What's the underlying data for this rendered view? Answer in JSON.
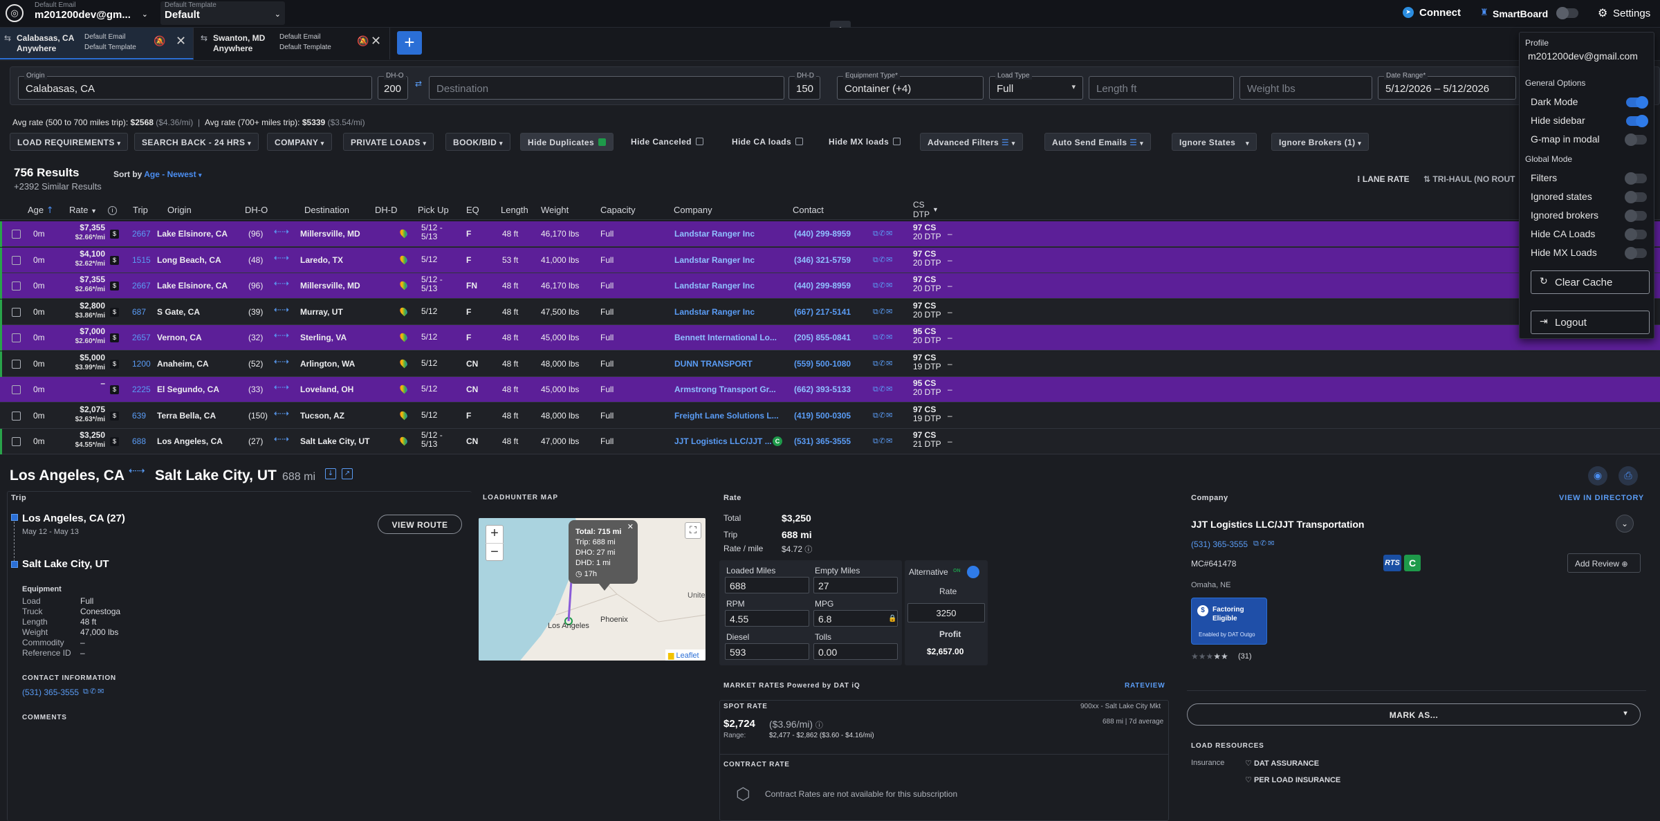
{
  "colors": {
    "accent": "#2b6fd6",
    "link": "#5a9cf5",
    "highlight_row": "#5c1f98",
    "bg": "#1b1d22"
  },
  "topbar": {
    "email_label": "Default Email",
    "email_value": "m201200dev@gm...",
    "template_label": "Default Template",
    "template_value": "Default",
    "connect": "Connect",
    "smartboard": "SmartBoard",
    "settings": "Settings"
  },
  "tabs": [
    {
      "origin": "Calabasas, CA",
      "dest": "Anywhere",
      "email": "Default Email",
      "template": "Default Template"
    },
    {
      "origin": "Swanton, MD",
      "dest": "Anywhere",
      "email": "Default Email",
      "template": "Default Template"
    }
  ],
  "search": {
    "origin_label": "Origin",
    "origin_value": "Calabasas, CA",
    "dho_label": "DH-O",
    "dho_value": "200",
    "dest_placeholder": "Destination",
    "dhd_label": "DH-D",
    "dhd_value": "150",
    "equip_label": "Equipment Type*",
    "equip_value": "Container (+4)",
    "loadtype_label": "Load Type",
    "loadtype_value": "Full",
    "length_placeholder": "Length ft",
    "weight_placeholder": "Weight lbs",
    "date_label": "Date Range*",
    "date_value": "5/12/2026 – 5/12/2026"
  },
  "avg": {
    "short_label": "Avg rate (500 to 700 miles trip):",
    "short_value": "$2568",
    "short_pm": "($4.36/mi)",
    "long_label": "Avg rate (700+ miles trip):",
    "long_value": "$5339",
    "long_pm": "($3.54/mi)"
  },
  "filters": {
    "load_req": "LOAD REQUIREMENTS",
    "search_back": "SEARCH BACK - 24 HRS",
    "company": "COMPANY",
    "private": "PRIVATE LOADS",
    "bookbid": "BOOK/BID",
    "hide_dup": "Hide Duplicates",
    "hide_canceled": "Hide Canceled",
    "hide_ca": "Hide CA loads",
    "hide_mx": "Hide MX loads",
    "advanced": "Advanced Filters",
    "auto_send": "Auto Send Emails",
    "ignore_states": "Ignore States",
    "ignore_brokers": "Ignore Brokers  (1)"
  },
  "results": {
    "count": "756 Results",
    "similar": "+2392 Similar Results",
    "sort_label": "Sort by",
    "sort_value": "Age - Newest",
    "lane_rate": "LANE RATE",
    "trihaul": "TRI-HAUL (NO ROUT"
  },
  "columns": {
    "age": "Age",
    "rate": "Rate",
    "trip": "Trip",
    "origin": "Origin",
    "dho": "DH-O",
    "dest": "Destination",
    "dhd": "DH-D",
    "pickup": "Pick Up",
    "eq": "EQ",
    "length": "Length",
    "weight": "Weight",
    "capacity": "Capacity",
    "company": "Company",
    "contact": "Contact",
    "cs": "CS",
    "dtp": "DTP"
  },
  "rows": [
    {
      "age": "0m",
      "rate": "$7,355",
      "pm": "$2.66*/mi",
      "trip": "2667",
      "origin": "Lake Elsinore, CA",
      "dho": "(96)",
      "dest": "Millersville, MD",
      "pick1": "5/12 -",
      "pick2": "5/13",
      "eq": "F",
      "len": "48 ft",
      "wt": "46,170 lbs",
      "cap": "Full",
      "company": "Landstar Ranger Inc",
      "contact": "(440) 299-8959",
      "cs": "97 CS",
      "dtp": "20 DTP",
      "last": "–"
    },
    {
      "age": "0m",
      "rate": "$4,100",
      "pm": "$2.62*/mi",
      "trip": "1515",
      "origin": "Long Beach, CA",
      "dho": "(48)",
      "dest": "Laredo, TX",
      "pick1": "5/12",
      "pick2": "",
      "eq": "F",
      "len": "53 ft",
      "wt": "41,000 lbs",
      "cap": "Full",
      "company": "Landstar Ranger Inc",
      "contact": "(346) 321-5759",
      "cs": "97 CS",
      "dtp": "20 DTP",
      "last": "–"
    },
    {
      "age": "0m",
      "rate": "$7,355",
      "pm": "$2.66*/mi",
      "trip": "2667",
      "origin": "Lake Elsinore, CA",
      "dho": "(96)",
      "dest": "Millersville, MD",
      "pick1": "5/12 -",
      "pick2": "5/13",
      "eq": "FN",
      "len": "48 ft",
      "wt": "46,170 lbs",
      "cap": "Full",
      "company": "Landstar Ranger Inc",
      "contact": "(440) 299-8959",
      "cs": "97 CS",
      "dtp": "20 DTP",
      "last": "–"
    },
    {
      "age": "0m",
      "rate": "$2,800",
      "pm": "$3.86*/mi",
      "trip": "687",
      "origin": "S Gate, CA",
      "dho": "(39)",
      "dest": "Murray, UT",
      "pick1": "5/12",
      "pick2": "",
      "eq": "F",
      "len": "48 ft",
      "wt": "47,500 lbs",
      "cap": "Full",
      "company": "Landstar Ranger Inc",
      "contact": "(667) 217-5141",
      "cs": "97 CS",
      "dtp": "20 DTP",
      "last": "–"
    },
    {
      "age": "0m",
      "rate": "$7,000",
      "pm": "$2.60*/mi",
      "trip": "2657",
      "origin": "Vernon, CA",
      "dho": "(32)",
      "dest": "Sterling, VA",
      "pick1": "5/12",
      "pick2": "",
      "eq": "F",
      "len": "48 ft",
      "wt": "45,000 lbs",
      "cap": "Full",
      "company": "Bennett International Lo...",
      "contact": "(205) 855-0841",
      "cs": "95 CS",
      "dtp": "20 DTP",
      "last": "–"
    },
    {
      "age": "0m",
      "rate": "$5,000",
      "pm": "$3.99*/mi",
      "trip": "1200",
      "origin": "Anaheim, CA",
      "dho": "(52)",
      "dest": "Arlington, WA",
      "pick1": "5/12",
      "pick2": "",
      "eq": "CN",
      "len": "48 ft",
      "wt": "48,000 lbs",
      "cap": "Full",
      "company": "DUNN TRANSPORT",
      "contact": "(559) 500-1080",
      "cs": "97 CS",
      "dtp": "19 DTP",
      "last": "–"
    },
    {
      "age": "0m",
      "rate": "–",
      "pm": "",
      "trip": "2225",
      "origin": "El Segundo, CA",
      "dho": "(33)",
      "dest": "Loveland, OH",
      "pick1": "5/12",
      "pick2": "",
      "eq": "CN",
      "len": "48 ft",
      "wt": "45,000 lbs",
      "cap": "Full",
      "company": "Armstrong Transport Gr...",
      "contact": "(662) 393-5133",
      "cs": "95 CS",
      "dtp": "20 DTP",
      "last": "–"
    },
    {
      "age": "0m",
      "rate": "$2,075",
      "pm": "$2.63*/mi",
      "trip": "639",
      "origin": "Terra Bella, CA",
      "dho": "(150)",
      "dest": "Tucson, AZ",
      "pick1": "5/12",
      "pick2": "",
      "eq": "F",
      "len": "48 ft",
      "wt": "48,000 lbs",
      "cap": "Full",
      "company": "Freight Lane Solutions L...",
      "contact": "(419) 500-0305",
      "cs": "97 CS",
      "dtp": "19 DTP",
      "last": "–"
    },
    {
      "age": "0m",
      "rate": "$3,250",
      "pm": "$4.55*/mi",
      "trip": "688",
      "origin": "Los Angeles, CA",
      "dho": "(27)",
      "dest": "Salt Lake City, UT",
      "pick1": "5/12 -",
      "pick2": "5/13",
      "eq": "CN",
      "len": "48 ft",
      "wt": "47,000 lbs",
      "cap": "Full",
      "company": "JJT Logistics LLC/JJT ...",
      "contact": "(531) 365-3555",
      "cs": "97 CS",
      "dtp": "21 DTP",
      "last": "–"
    }
  ],
  "detail": {
    "origin": "Los Angeles, CA",
    "dest": "Salt Lake City, UT",
    "miles": "688 mi",
    "trip_hdr": "Trip",
    "stop1": "Los Angeles, CA (27)",
    "stop1_date": "May 12 - May 13",
    "stop2": "Salt Lake City, UT",
    "view_route": "VIEW ROUTE",
    "equip_hdr": "Equipment",
    "equip": [
      {
        "k": "Load",
        "v": "Full"
      },
      {
        "k": "Truck",
        "v": "Conestoga"
      },
      {
        "k": "Length",
        "v": "48 ft"
      },
      {
        "k": "Weight",
        "v": "47,000 lbs"
      },
      {
        "k": "Commodity",
        "v": "–"
      },
      {
        "k": "Reference ID",
        "v": "–"
      }
    ],
    "contact_hdr": "CONTACT INFORMATION",
    "contact_phone": "(531) 365-3555",
    "comments_hdr": "COMMENTS"
  },
  "map": {
    "title": "LOADHUNTER MAP",
    "total": "Total: 715 mi",
    "trip": "Trip: 688 mi",
    "dho": "DHO: 27 mi",
    "dhd": "DHD: 1 mi",
    "time": "17h",
    "city1": "Los Angeles",
    "city2": "Phoenix",
    "city3": "Unite",
    "attribution": "Leaflet"
  },
  "rate": {
    "hdr": "Rate",
    "total_k": "Total",
    "total_v": "$3,250",
    "trip_k": "Trip",
    "trip_v": "688 mi",
    "rpm_k": "Rate / mile",
    "rpm_v": "$4.72",
    "loaded_k": "Loaded Miles",
    "loaded_v": "688",
    "empty_k": "Empty Miles",
    "empty_v": "27",
    "rpm2_k": "RPM",
    "rpm2_v": "4.55",
    "mpg_k": "MPG",
    "mpg_v": "6.8",
    "diesel_k": "Diesel",
    "diesel_v": "593",
    "tolls_k": "Tolls",
    "tolls_v": "0.00",
    "alt_k": "Alternative",
    "alt_on": "ON",
    "rate_k": "Rate",
    "rate_v": "3250",
    "profit_k": "Profit",
    "profit_v": "$2,657.00"
  },
  "market": {
    "hdr": "MARKET RATES Powered by DAT iQ",
    "rateview": "RATEVIEW",
    "spot_hdr": "SPOT RATE",
    "spot_region": "900xx - Salt Lake City Mkt",
    "spot_v": "$2,724",
    "spot_pm": "($3.96/mi)",
    "spot_avg": "688 mi | 7d average",
    "range_k": "Range:",
    "range_v": "$2,477 - $2,862 ($3.60 - $4.16/mi)",
    "contract_hdr": "CONTRACT RATE",
    "contract_msg": "Contract Rates are not available for this subscription"
  },
  "company": {
    "hdr": "Company",
    "directory": "VIEW IN DIRECTORY",
    "name": "JJT Logistics LLC/JJT Transportation",
    "phone": "(531) 365-3555",
    "mc": "MC#641478",
    "city": "Omaha, NE",
    "add_review": "Add Review",
    "factoring1": "Factoring",
    "factoring2": "Eligible",
    "factoring_by": "Enabled by DAT Outgo",
    "reviews": "(31)",
    "mark_as": "MARK AS...",
    "resources_hdr": "LOAD RESOURCES",
    "insurance_k": "Insurance",
    "ins1": "DAT ASSURANCE",
    "ins2": "PER LOAD INSURANCE"
  },
  "settings_panel": {
    "profile_hdr": "Profile",
    "email": "m201200dev@gmail.com",
    "general_hdr": "General Options",
    "dark_mode": "Dark Mode",
    "hide_sidebar": "Hide sidebar",
    "gmap": "G-map in modal",
    "global_hdr": "Global Mode",
    "filters": "Filters",
    "ign_states": "Ignored states",
    "ign_brokers": "Ignored brokers",
    "hide_ca": "Hide CA Loads",
    "hide_mx": "Hide MX Loads",
    "clear_cache": "Clear Cache",
    "logout": "Logout"
  }
}
